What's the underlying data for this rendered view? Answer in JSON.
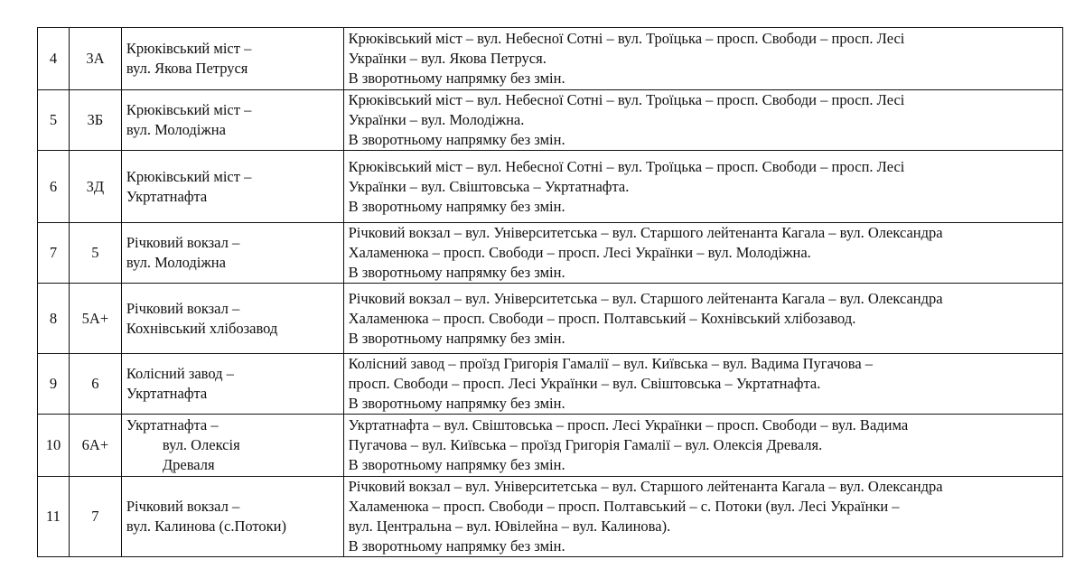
{
  "rows": [
    {
      "n": "4",
      "route": "3А",
      "name": [
        "Крюківський міст –",
        "вул. Якова Петруся"
      ],
      "path": [
        "Крюківський міст – вул. Небесної Сотні – вул. Троїцька – просп. Свободи –  просп. Лесі",
        "Українки – вул. Якова Петруся.",
        "В зворотньому напрямку без змін."
      ]
    },
    {
      "n": "5",
      "route": "3Б",
      "name": [
        "Крюківський міст –",
        "вул. Молодіжна"
      ],
      "path": [
        "Крюківський міст – вул. Небесної Сотні – вул. Троїцька – просп. Свободи –  просп. Лесі",
        "Українки – вул. Молодіжна.",
        "В зворотньому напрямку без змін."
      ]
    },
    {
      "n": "6",
      "route": "3Д",
      "name": [
        "Крюківський міст –",
        "Укртатнафта"
      ],
      "path": [
        "Крюківський міст – вул. Небесної Сотні – вул. Троїцька – просп. Свободи –  просп. Лесі",
        "Українки – вул. Свіштовська – Укртатнафта.",
        "В зворотньому напрямку без змін."
      ]
    },
    {
      "n": "7",
      "route": "5",
      "name": [
        "Річковий вокзал –",
        "вул. Молодіжна"
      ],
      "path": [
        "Річковий вокзал – вул. Університетська – вул. Старшого лейтенанта Кагала – вул. Олександра",
        "Халаменюка – просп. Свободи –  просп. Лесі Українки – вул. Молодіжна.",
        "В зворотньому напрямку без змін."
      ]
    },
    {
      "n": "8",
      "route": "5А+",
      "name": [
        "Річковий вокзал –",
        "Кохнівський хлібозавод"
      ],
      "path": [
        "Річковий вокзал – вул. Університетська – вул. Старшого лейтенанта Кагала – вул. Олександра",
        "Халаменюка – просп. Свободи – просп. Полтавський – Кохнівський хлібозавод.",
        "В зворотньому напрямку без змін."
      ]
    },
    {
      "n": "9",
      "route": "6",
      "name": [
        "Колісний завод –",
        "Укртатнафта"
      ],
      "path": [
        "Колісний завод – проїзд Григорія Гамалії – вул. Київська – вул. Вадима Пугачова –",
        "просп. Свободи – просп. Лесі Українки – вул. Свіштовська – Укртатнафта.",
        "В зворотньому напрямку без змін."
      ]
    },
    {
      "n": "10",
      "route": "6А+",
      "name": [
        "Укртатнафта –",
        "вул. Олексія",
        "Древаля"
      ],
      "path": [
        "Укртатнафта – вул. Свіштовська – просп. Лесі Українки – просп. Свободи – вул. Вадима",
        "Пугачова – вул. Київська – проїзд Григорія Гамалії – вул. Олексія Древаля.",
        "В зворотньому напрямку без змін."
      ]
    },
    {
      "n": "11",
      "route": "7",
      "name": [
        "Річковий вокзал –",
        "вул. Калинова (с.Потоки)"
      ],
      "path": [
        "Річковий вокзал – вул. Університетська – вул. Старшого лейтенанта Кагала – вул. Олександра",
        "Халаменюка – просп. Свободи – просп. Полтавський – с. Потоки (вул. Лесі Українки –",
        "вул. Центральна – вул. Ювілейна – вул. Калинова).",
        "В зворотньому напрямку без змін."
      ]
    }
  ]
}
